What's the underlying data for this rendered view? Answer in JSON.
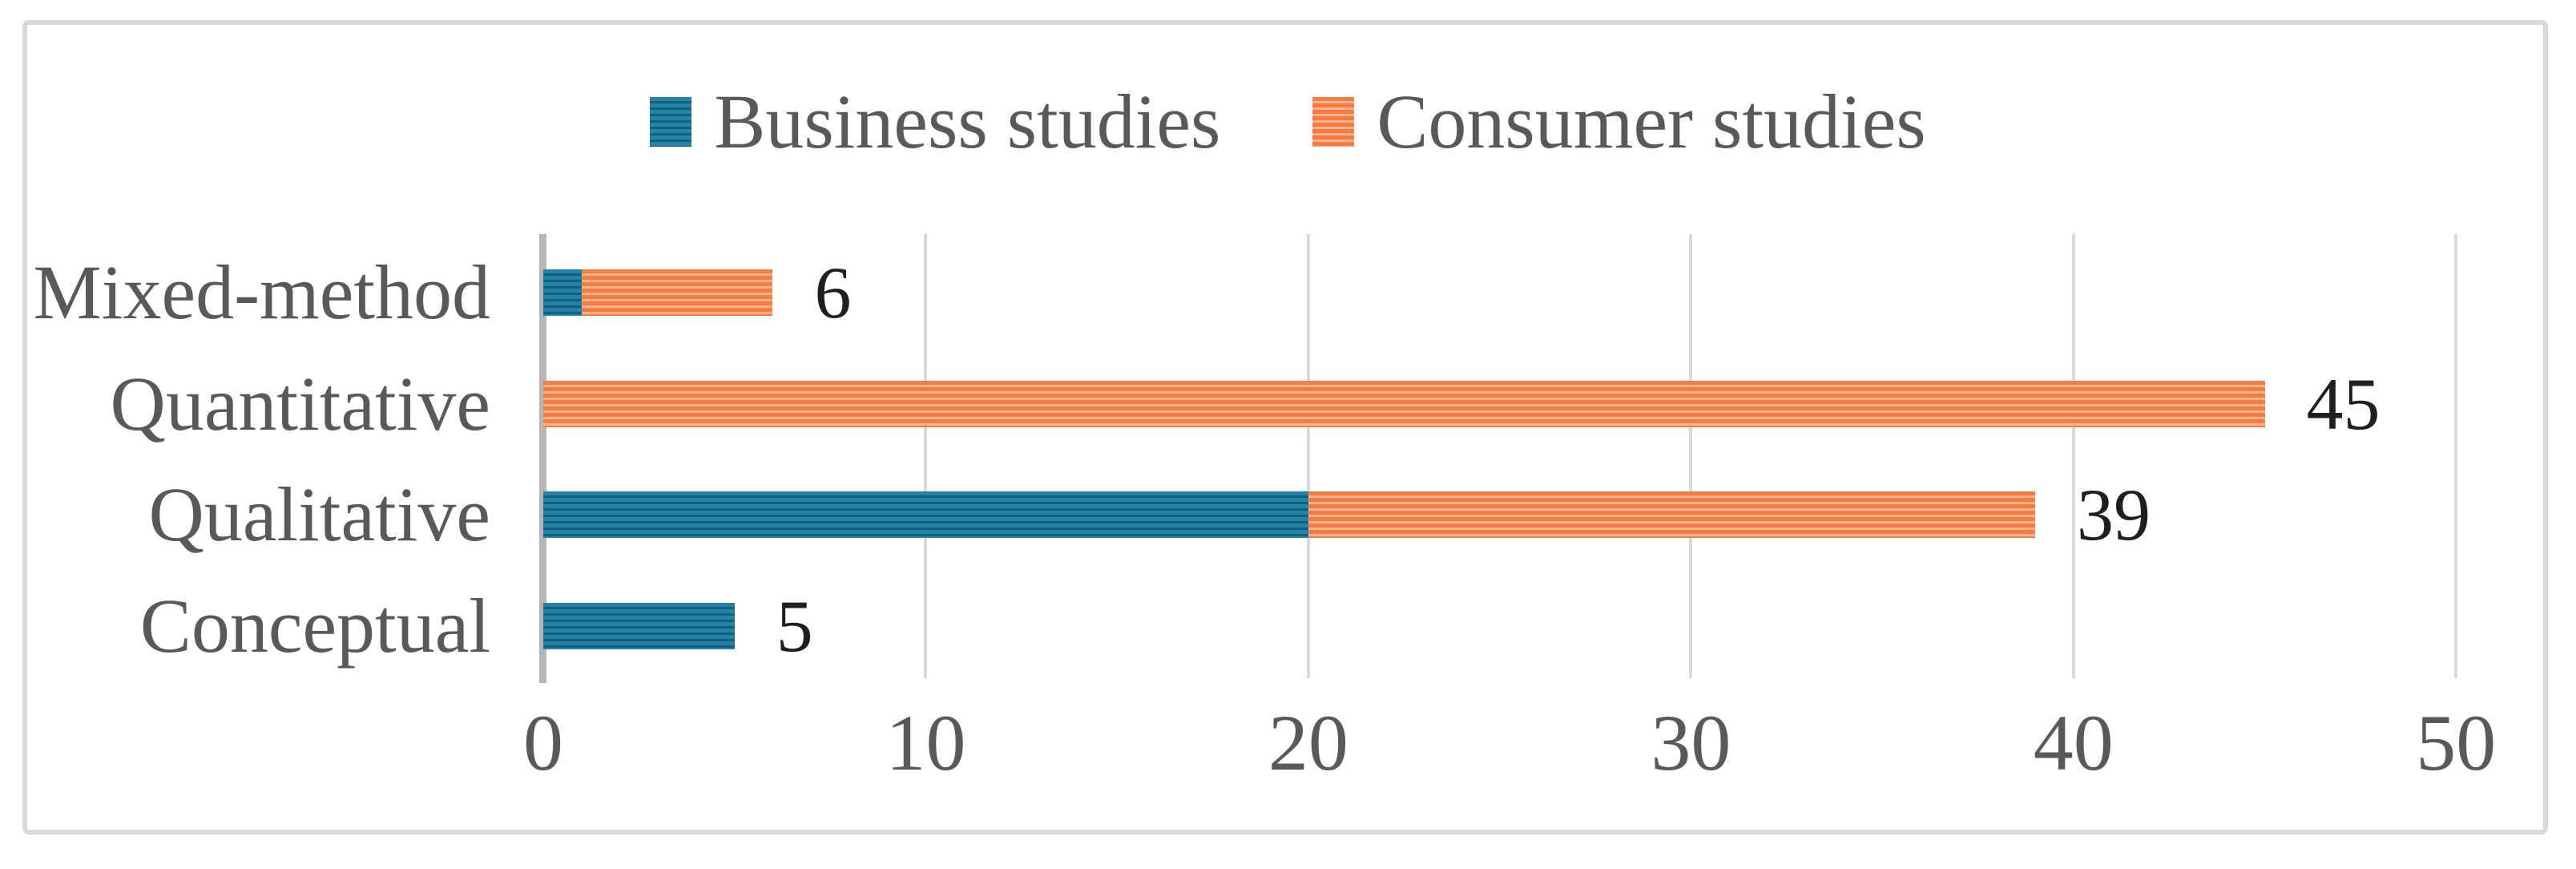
{
  "chart_data": {
    "type": "bar",
    "orientation": "horizontal",
    "stacked": true,
    "categories": [
      "Mixed-method",
      "Quantitative",
      "Qualitative",
      "Conceptual"
    ],
    "series": [
      {
        "name": "Business studies",
        "color": "#1f7a9e",
        "pattern": "horizontal-stripes",
        "values": [
          1,
          0,
          20,
          5
        ]
      },
      {
        "name": "Consumer studies",
        "color": "#f87c41",
        "pattern": "horizontal-stripes",
        "values": [
          5,
          45,
          19,
          0
        ]
      }
    ],
    "bar_total_labels": [
      "6",
      "45",
      "39",
      "5"
    ],
    "title": "",
    "xlabel": "",
    "ylabel": "",
    "xlim": [
      0,
      50
    ],
    "x_ticks": [
      0,
      10,
      20,
      30,
      40,
      50
    ],
    "grid": true,
    "legend_position": "top-center",
    "colors": {
      "grid": "#d9d9d9",
      "axis": "#b5b5b5",
      "label_text": "#595959",
      "data_label_text": "#1f1f1f",
      "frame_border": "#d9d9d9"
    }
  }
}
